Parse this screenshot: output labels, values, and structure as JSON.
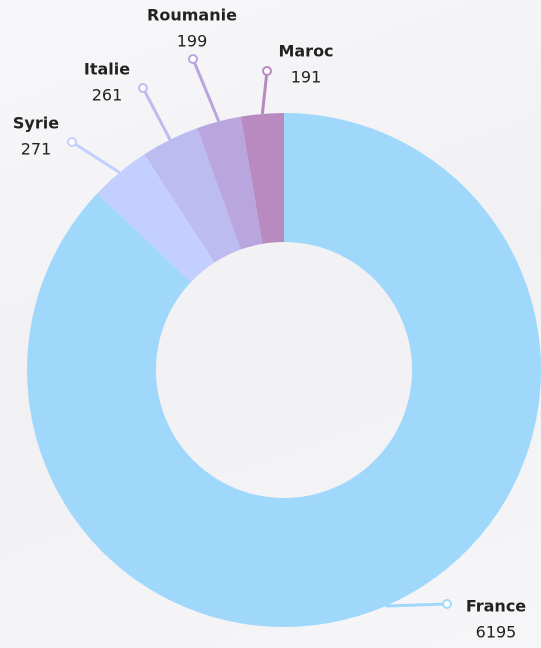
{
  "chart_data": {
    "type": "donut",
    "categories": [
      "France",
      "Syrie",
      "Italie",
      "Roumanie",
      "Maroc"
    ],
    "values": [
      6195,
      271,
      261,
      199,
      191
    ],
    "colors": [
      "#a0d8fc",
      "#c3cfff",
      "#bcbcf0",
      "#b9a6de",
      "#b98abf"
    ]
  }
}
